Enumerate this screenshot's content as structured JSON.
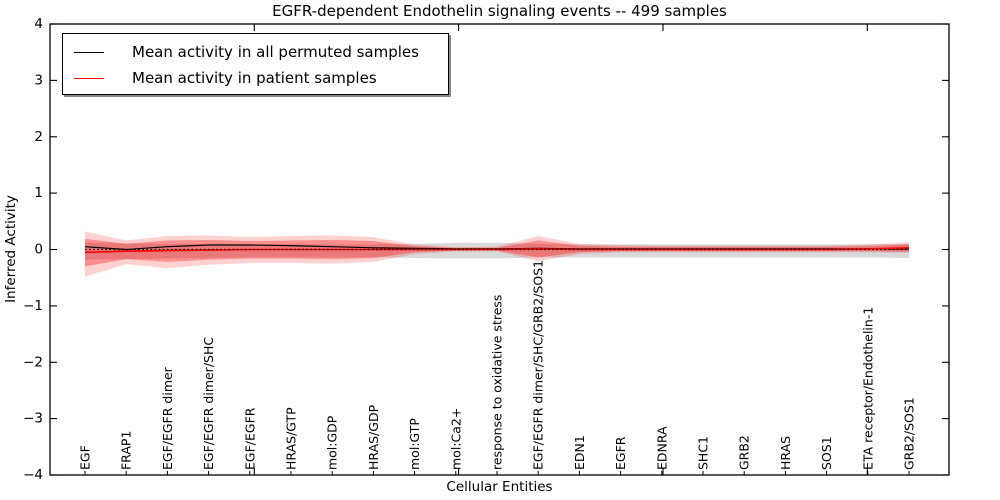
{
  "chart_data": {
    "type": "line",
    "title": "EGFR-dependent Endothelin signaling events -- 499 samples",
    "xlabel": "Cellular Entities",
    "ylabel": "Inferred Activity",
    "ylim": [
      -4,
      4
    ],
    "ytick_values": [
      4,
      3,
      2,
      1,
      0,
      -1,
      -2,
      -3,
      -4
    ],
    "ytick_labels": [
      "4",
      "3",
      "2",
      "1",
      "0",
      "−1",
      "−2",
      "−3",
      "−4"
    ],
    "x_major_ticks": [
      5,
      10,
      15,
      20
    ],
    "grid": false,
    "legend_position": "upper left",
    "categories": [
      "EGF",
      "FRAP1",
      "EGF/EGFR dimer",
      "EGF/EGFR dimer/SHC",
      "EGF/EGFR",
      "HRAS/GTP",
      "mol:GDP",
      "HRAS/GDP",
      "mol:GTP",
      "mol:Ca2+",
      "response to oxidative stress",
      "EGF/EGFR dimer/SHC/GRB2/SOS1",
      "EDN1",
      "EGFR",
      "EDNRA",
      "SHC1",
      "GRB2",
      "HRAS",
      "SOS1",
      "ETA receptor/Endothelin-1",
      "GRB2/SOS1"
    ],
    "series": [
      {
        "name": "Mean activity in all permuted samples",
        "color": "#000000",
        "values": [
          0.05,
          0.0,
          0.05,
          0.08,
          0.08,
          0.07,
          0.05,
          0.03,
          0.02,
          0.01,
          0.01,
          0.02,
          0.01,
          0.01,
          0.01,
          0.01,
          0.01,
          0.01,
          0.01,
          0.01,
          0.01
        ]
      },
      {
        "name": "Mean activity in patient samples",
        "color": "#ff0000",
        "values": [
          -0.05,
          -0.03,
          -0.02,
          -0.01,
          0.0,
          0.0,
          0.0,
          0.0,
          0.0,
          0.0,
          0.0,
          0.01,
          0.0,
          0.0,
          0.0,
          0.0,
          0.0,
          0.0,
          0.0,
          0.01,
          0.03
        ]
      }
    ],
    "zero_line": {
      "value": 0,
      "style": "dotted",
      "color": "#000000"
    },
    "bands": [
      {
        "name": "permuted-std-band",
        "color": "#808080",
        "alpha": 0.3,
        "upper": [
          0.12,
          0.11,
          0.1,
          0.1,
          0.09,
          0.09,
          0.09,
          0.09,
          0.1,
          0.12,
          0.12,
          0.1,
          0.09,
          0.09,
          0.09,
          0.09,
          0.09,
          0.09,
          0.09,
          0.09,
          0.1
        ],
        "lower": [
          -0.18,
          -0.17,
          -0.16,
          -0.15,
          -0.14,
          -0.14,
          -0.14,
          -0.14,
          -0.15,
          -0.16,
          -0.16,
          -0.14,
          -0.14,
          -0.14,
          -0.14,
          -0.14,
          -0.14,
          -0.14,
          -0.14,
          -0.14,
          -0.15
        ]
      },
      {
        "name": "patient-outer-std-band",
        "color": "#ff0000",
        "alpha": 0.18,
        "upper": [
          0.32,
          0.16,
          0.24,
          0.25,
          0.22,
          0.24,
          0.25,
          0.22,
          0.09,
          0.04,
          0.05,
          0.24,
          0.1,
          0.08,
          0.07,
          0.07,
          0.07,
          0.07,
          0.07,
          0.09,
          0.13
        ],
        "lower": [
          -0.48,
          -0.26,
          -0.33,
          -0.27,
          -0.24,
          -0.24,
          -0.25,
          -0.22,
          -0.08,
          -0.03,
          -0.03,
          -0.21,
          -0.08,
          -0.05,
          -0.05,
          -0.05,
          -0.05,
          -0.05,
          -0.05,
          -0.05,
          -0.06
        ]
      },
      {
        "name": "patient-inner-std-band",
        "color": "#ff0000",
        "alpha": 0.32,
        "upper": [
          0.19,
          0.1,
          0.16,
          0.17,
          0.15,
          0.16,
          0.17,
          0.15,
          0.06,
          0.03,
          0.03,
          0.16,
          0.07,
          0.05,
          0.05,
          0.05,
          0.05,
          0.05,
          0.05,
          0.06,
          0.09
        ],
        "lower": [
          -0.3,
          -0.17,
          -0.22,
          -0.18,
          -0.16,
          -0.16,
          -0.17,
          -0.15,
          -0.05,
          -0.02,
          -0.02,
          -0.14,
          -0.05,
          -0.03,
          -0.03,
          -0.03,
          -0.03,
          -0.03,
          -0.03,
          -0.03,
          -0.04
        ]
      }
    ]
  }
}
